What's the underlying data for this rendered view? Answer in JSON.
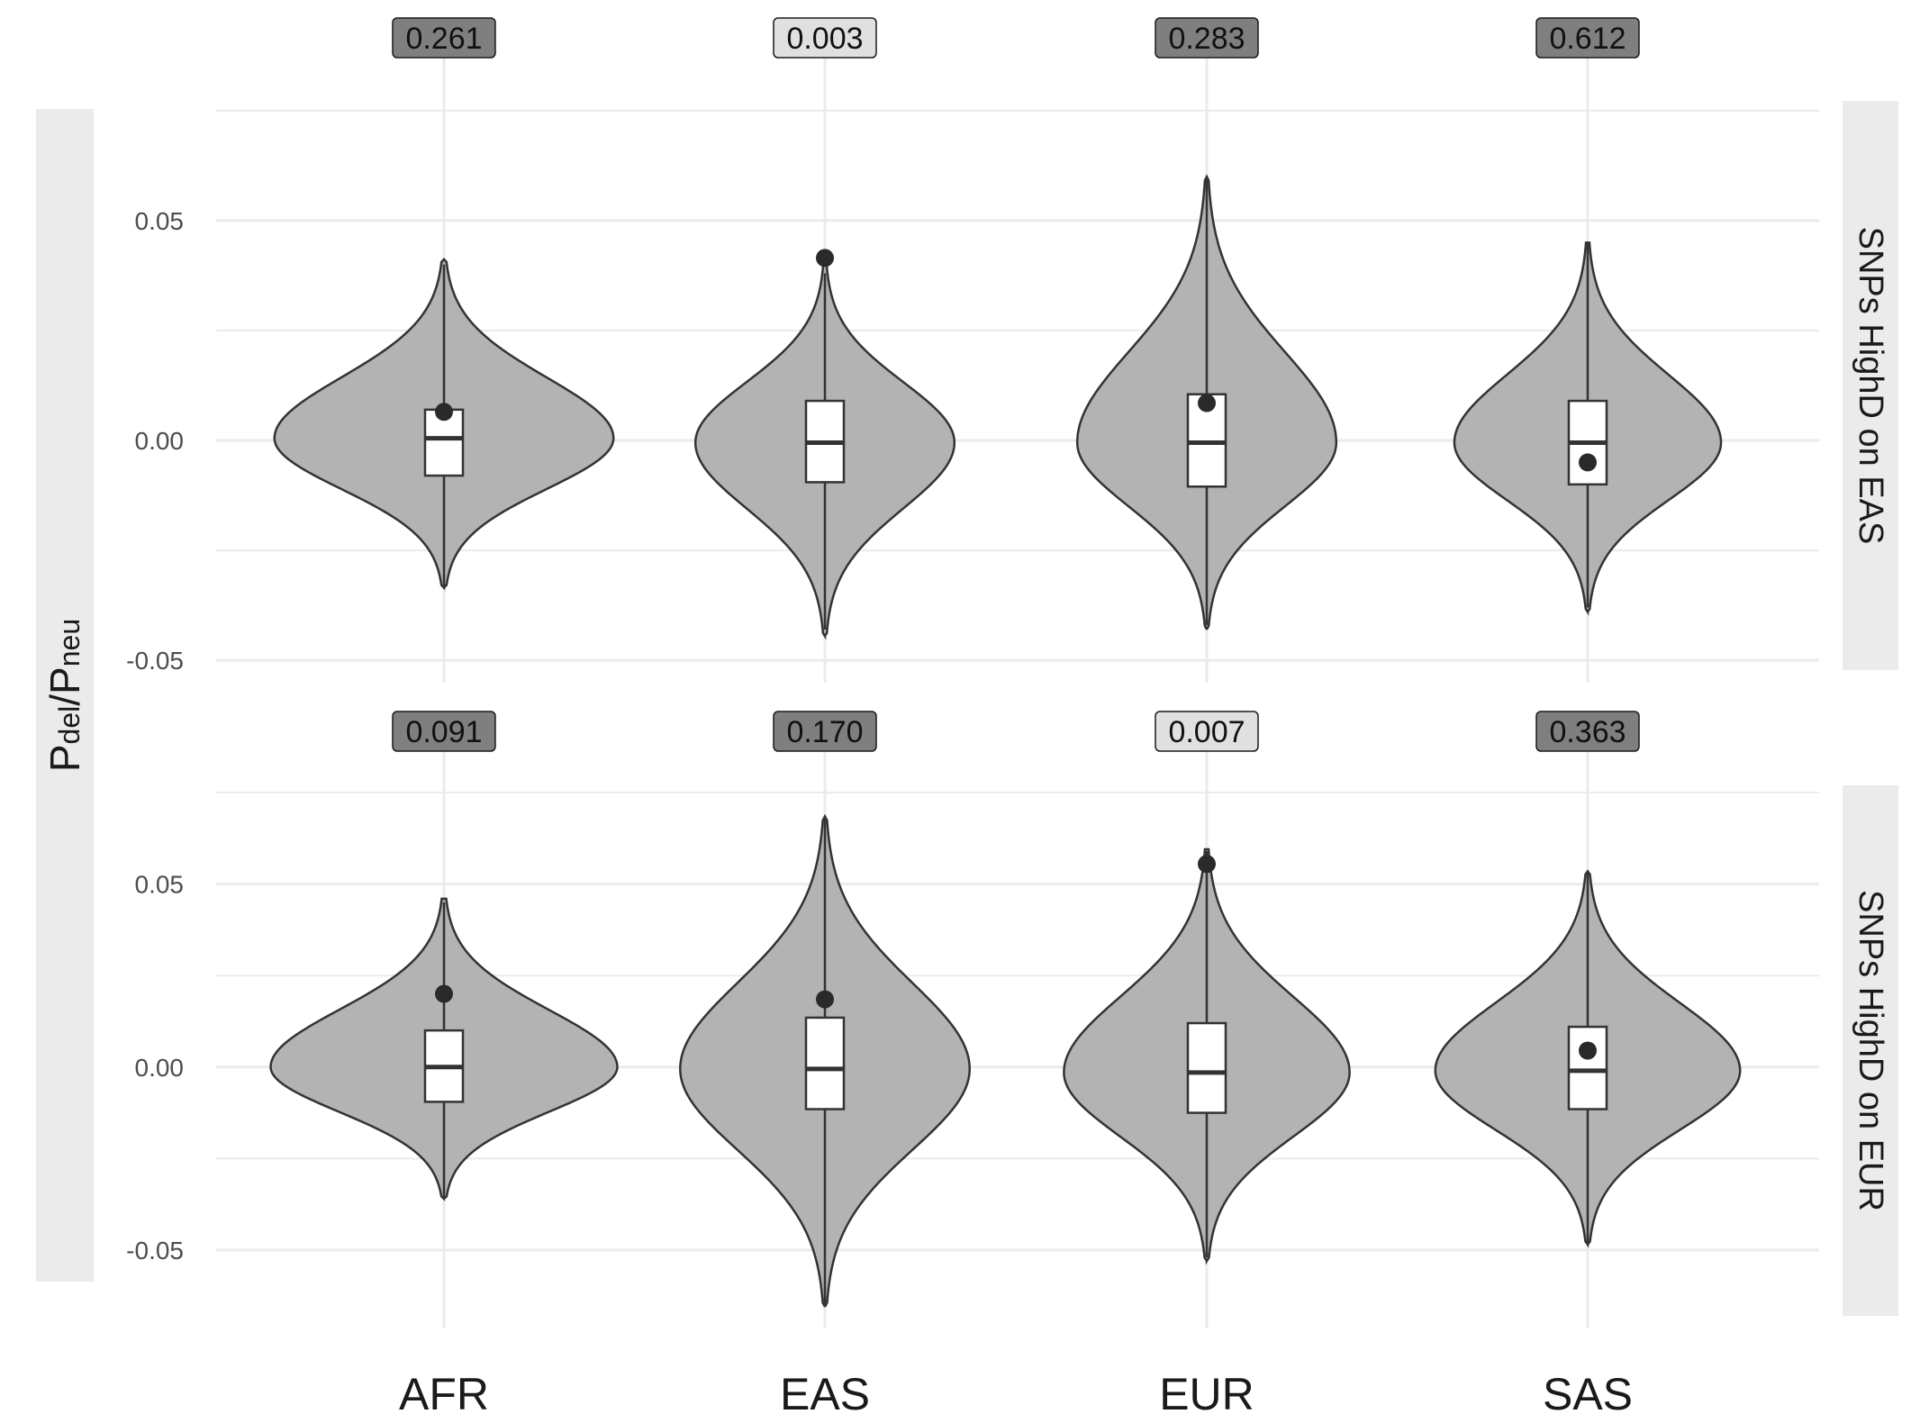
{
  "chart_data": {
    "type": "violin",
    "categories": [
      "AFR",
      "EAS",
      "EUR",
      "SAS"
    ],
    "ylabel": {
      "main1": "P",
      "sub1": "del",
      "slash": "/",
      "main2": "P",
      "sub2": "neu"
    },
    "colors": {
      "violin_fill": "#b3b3b3",
      "violin_stroke": "#333333",
      "box_fill": "#ffffff",
      "point": "#2a2a2a",
      "label_dark": "#7f7f7f",
      "label_light": "#e0e0e0",
      "strip": "#ebebeb",
      "grid": "#ebebeb"
    },
    "panels": [
      {
        "strip": "SNPs HighD on EAS",
        "ylim": [
          -0.051,
          0.076
        ],
        "y_ticks": [
          0.05,
          0.0,
          -0.05
        ],
        "y_tick_labels": [
          "0.05",
          "0.00",
          "-0.05"
        ],
        "groups": [
          {
            "category": "AFR",
            "pvalue": "0.261",
            "label_style": "dark",
            "q1": -0.008,
            "median": 0.0005,
            "q3": 0.007,
            "wlow": -0.033,
            "whigh": 0.04,
            "point": 0.0065,
            "ymin": -0.0335,
            "ymax": 0.0412,
            "max_width": 0.89
          },
          {
            "category": "EAS",
            "pvalue": "0.003",
            "label_style": "light",
            "q1": -0.0095,
            "median": -0.0005,
            "q3": 0.009,
            "wlow": -0.043,
            "whigh": 0.038,
            "point": 0.0415,
            "ymin": -0.0445,
            "ymax": 0.04,
            "max_width": 0.68
          },
          {
            "category": "EUR",
            "pvalue": "0.283",
            "label_style": "dark",
            "q1": -0.0105,
            "median": -0.0005,
            "q3": 0.0105,
            "wlow": -0.042,
            "whigh": 0.06,
            "point": 0.0085,
            "ymin": -0.043,
            "ymax": 0.06,
            "max_width": 0.68
          },
          {
            "category": "SAS",
            "pvalue": "0.612",
            "label_style": "dark",
            "q1": -0.01,
            "median": -0.0005,
            "q3": 0.009,
            "wlow": -0.038,
            "whigh": 0.045,
            "point": -0.005,
            "ymin": -0.039,
            "ymax": 0.045,
            "max_width": 0.7
          }
        ]
      },
      {
        "strip": "SNPs HighD on EUR",
        "ylim": [
          -0.0665,
          0.0755
        ],
        "y_ticks": [
          0.05,
          0.0,
          -0.05
        ],
        "y_tick_labels": [
          "0.05",
          "0.00",
          "-0.05"
        ],
        "groups": [
          {
            "category": "AFR",
            "pvalue": "0.091",
            "label_style": "dark",
            "q1": -0.0095,
            "median": 0.0,
            "q3": 0.01,
            "wlow": -0.036,
            "whigh": 0.045,
            "point": 0.02,
            "ymin": -0.036,
            "ymax": 0.046,
            "max_width": 0.91
          },
          {
            "category": "EAS",
            "pvalue": "0.170",
            "label_style": "dark",
            "q1": -0.0115,
            "median": -0.0005,
            "q3": 0.0135,
            "wlow": -0.065,
            "whigh": 0.068,
            "point": 0.0185,
            "ymin": -0.0655,
            "ymax": 0.0685,
            "max_width": 0.76
          },
          {
            "category": "EUR",
            "pvalue": "0.007",
            "label_style": "light",
            "q1": -0.0125,
            "median": -0.0015,
            "q3": 0.012,
            "wlow": -0.052,
            "whigh": 0.059,
            "point": 0.0555,
            "ymin": -0.053,
            "ymax": 0.0595,
            "max_width": 0.75
          },
          {
            "category": "SAS",
            "pvalue": "0.363",
            "label_style": "dark",
            "q1": -0.0115,
            "median": -0.001,
            "q3": 0.011,
            "wlow": -0.048,
            "whigh": 0.053,
            "point": 0.0045,
            "ymin": -0.0485,
            "ymax": 0.0535,
            "max_width": 0.8
          }
        ]
      }
    ]
  }
}
